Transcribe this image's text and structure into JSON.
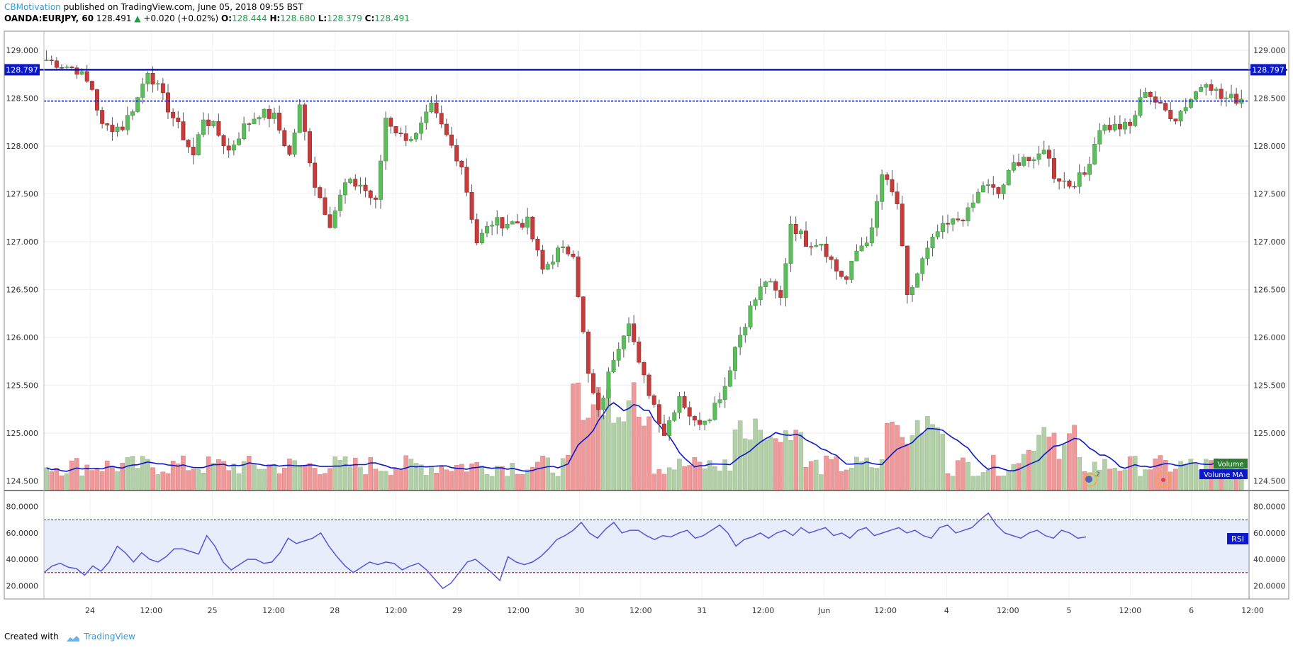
{
  "header": {
    "author": "CBMotivation",
    "published": "published on TradingView.com, June 05, 2018 09:55 BST",
    "symbol": "OANDA:EURJPY, 60",
    "last": "128.491",
    "arrow": "▲",
    "change": "+0.020 (+0.02%)",
    "o_label": "O:",
    "o_value": "128.444",
    "h_label": "H:",
    "h_value": "128.680",
    "l_label": "L:",
    "l_value": "128.379",
    "c_label": "C:",
    "c_value": "128.491"
  },
  "footer": {
    "created_with": "Created with",
    "brand": "TradingView"
  },
  "colors": {
    "up": "#5cbd5c",
    "down": "#c43c3c",
    "vol_up": "#b3cfa8",
    "vol_down": "#ef9a9a",
    "line_blue": "#0a18c9",
    "rsi_line": "#5555dd",
    "rsi_band": "#e8edfb"
  },
  "chart_data": [
    {
      "type": "candlestick",
      "ylim": [
        124.4,
        129.2
      ],
      "y_ticks": [
        "129.000",
        "128.500",
        "128.000",
        "127.500",
        "127.000",
        "126.500",
        "126.000",
        "125.500",
        "125.000",
        "124.500"
      ],
      "x_ticks": [
        "24",
        "12:00",
        "25",
        "12:00",
        "28",
        "12:00",
        "29",
        "12:00",
        "30",
        "12:00",
        "31",
        "12:00",
        "Jun",
        "12:00",
        "4",
        "12:00",
        "5",
        "12:00",
        "6",
        "12:00"
      ],
      "resistance_line": 128.797,
      "resistance_label": "128.797",
      "dotted_line": 128.47,
      "anchor_closes": [
        [
          0,
          128.9
        ],
        [
          6,
          128.8
        ],
        [
          9,
          128.6
        ],
        [
          11,
          128.2
        ],
        [
          15,
          128.2
        ],
        [
          18,
          128.5
        ],
        [
          20,
          128.8
        ],
        [
          23,
          128.5
        ],
        [
          26,
          128.2
        ],
        [
          29,
          127.9
        ],
        [
          31,
          128.3
        ],
        [
          33,
          128.2
        ],
        [
          36,
          127.95
        ],
        [
          39,
          128.2
        ],
        [
          42,
          128.35
        ],
        [
          45,
          128.3
        ],
        [
          48,
          127.9
        ],
        [
          50,
          128.4
        ],
        [
          53,
          127.6
        ],
        [
          56,
          127.2
        ],
        [
          59,
          127.6
        ],
        [
          62,
          127.6
        ],
        [
          65,
          127.4
        ],
        [
          67,
          128.3
        ],
        [
          70,
          128.1
        ],
        [
          73,
          128.1
        ],
        [
          76,
          128.4
        ],
        [
          78,
          128.2
        ],
        [
          82,
          127.8
        ],
        [
          85,
          127.0
        ],
        [
          88,
          127.2
        ],
        [
          91,
          127.2
        ],
        [
          95,
          127.2
        ],
        [
          98,
          126.7
        ],
        [
          101,
          126.9
        ],
        [
          104,
          126.9
        ],
        [
          107,
          125.6
        ],
        [
          109,
          125.2
        ],
        [
          112,
          125.8
        ],
        [
          115,
          126.2
        ],
        [
          117,
          125.7
        ],
        [
          120,
          125.3
        ],
        [
          122,
          125.0
        ],
        [
          125,
          125.4
        ],
        [
          128,
          125.1
        ],
        [
          131,
          125.2
        ],
        [
          134,
          125.5
        ],
        [
          136,
          125.9
        ],
        [
          139,
          126.3
        ],
        [
          142,
          126.6
        ],
        [
          145,
          126.4
        ],
        [
          147,
          127.2
        ],
        [
          150,
          127.0
        ],
        [
          153,
          127.0
        ],
        [
          156,
          126.7
        ],
        [
          158,
          126.6
        ],
        [
          160,
          126.9
        ],
        [
          163,
          127.1
        ],
        [
          165,
          127.7
        ],
        [
          168,
          127.4
        ],
        [
          170,
          126.4
        ],
        [
          173,
          126.8
        ],
        [
          176,
          127.1
        ],
        [
          179,
          127.2
        ],
        [
          182,
          127.3
        ],
        [
          185,
          127.6
        ],
        [
          188,
          127.5
        ],
        [
          191,
          127.8
        ],
        [
          193,
          127.9
        ],
        [
          195,
          127.8
        ],
        [
          197,
          128.0
        ],
        [
          199,
          127.7
        ],
        [
          202,
          127.6
        ],
        [
          205,
          127.7
        ],
        [
          208,
          128.2
        ],
        [
          211,
          128.2
        ],
        [
          214,
          128.2
        ],
        [
          217,
          128.6
        ],
        [
          220,
          128.4
        ],
        [
          223,
          128.3
        ],
        [
          226,
          128.5
        ],
        [
          229,
          128.7
        ],
        [
          232,
          128.5
        ],
        [
          236,
          128.49
        ]
      ]
    },
    {
      "type": "bar",
      "series_names": [
        "Volume",
        "Volume MA"
      ],
      "ylim": [
        0,
        1
      ]
    },
    {
      "type": "line",
      "name": "RSI",
      "ylim": [
        10,
        90
      ],
      "y_ticks": [
        "80.0000",
        "60.0000",
        "40.0000",
        "20.0000"
      ],
      "upper": 70,
      "lower": 30,
      "values": [
        30,
        35,
        37,
        34,
        33,
        28,
        35,
        31,
        38,
        50,
        45,
        38,
        45,
        40,
        38,
        42,
        48,
        48,
        46,
        44,
        58,
        50,
        38,
        32,
        36,
        40,
        40,
        37,
        38,
        45,
        56,
        52,
        54,
        56,
        60,
        50,
        42,
        35,
        30,
        34,
        38,
        36,
        38,
        37,
        32,
        35,
        37,
        32,
        25,
        18,
        22,
        30,
        38,
        40,
        35,
        30,
        24,
        42,
        38,
        36,
        38,
        42,
        48,
        55,
        58,
        62,
        68,
        60,
        56,
        63,
        68,
        60,
        62,
        62,
        58,
        55,
        58,
        57,
        60,
        62,
        56,
        58,
        62,
        66,
        60,
        50,
        55,
        57,
        60,
        56,
        60,
        62,
        58,
        64,
        60,
        62,
        64,
        58,
        60,
        56,
        62,
        64,
        58,
        60,
        62,
        64,
        60,
        62,
        58,
        56,
        64,
        66,
        60,
        62,
        64,
        70,
        75,
        66,
        60,
        58,
        56,
        60,
        62,
        58,
        56,
        62,
        60,
        56,
        57
      ],
      "label": "RSI"
    }
  ],
  "volume_labels": {
    "volume": "Volume",
    "volume_ma": "Volume MA"
  },
  "markers": {
    "badge_count": "2"
  }
}
